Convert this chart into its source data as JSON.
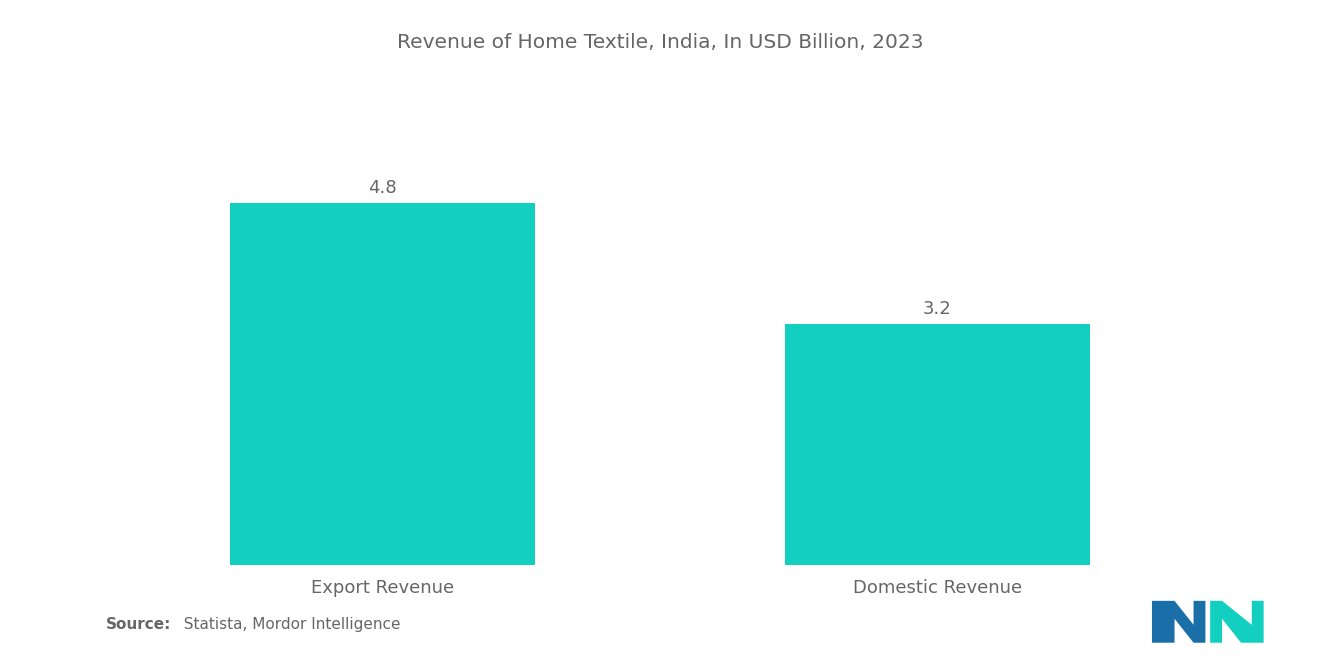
{
  "title": "Revenue of Home Textile, India, In USD Billion, 2023",
  "categories": [
    "Export Revenue",
    "Domestic Revenue"
  ],
  "values": [
    4.8,
    3.2
  ],
  "bar_color": "#12CFC0",
  "background_color": "#ffffff",
  "title_fontsize": 14.5,
  "label_fontsize": 13,
  "value_fontsize": 13,
  "source_bold": "Source:",
  "source_rest": "  Statista, Mordor Intelligence",
  "ylim": [
    0,
    6
  ],
  "bar_positions": [
    1,
    3
  ],
  "bar_width": 1.1,
  "xlim": [
    0,
    4
  ],
  "text_color": "#666666",
  "logo_left_color": "#1A6FA8",
  "logo_right_color": "#12CFC0"
}
